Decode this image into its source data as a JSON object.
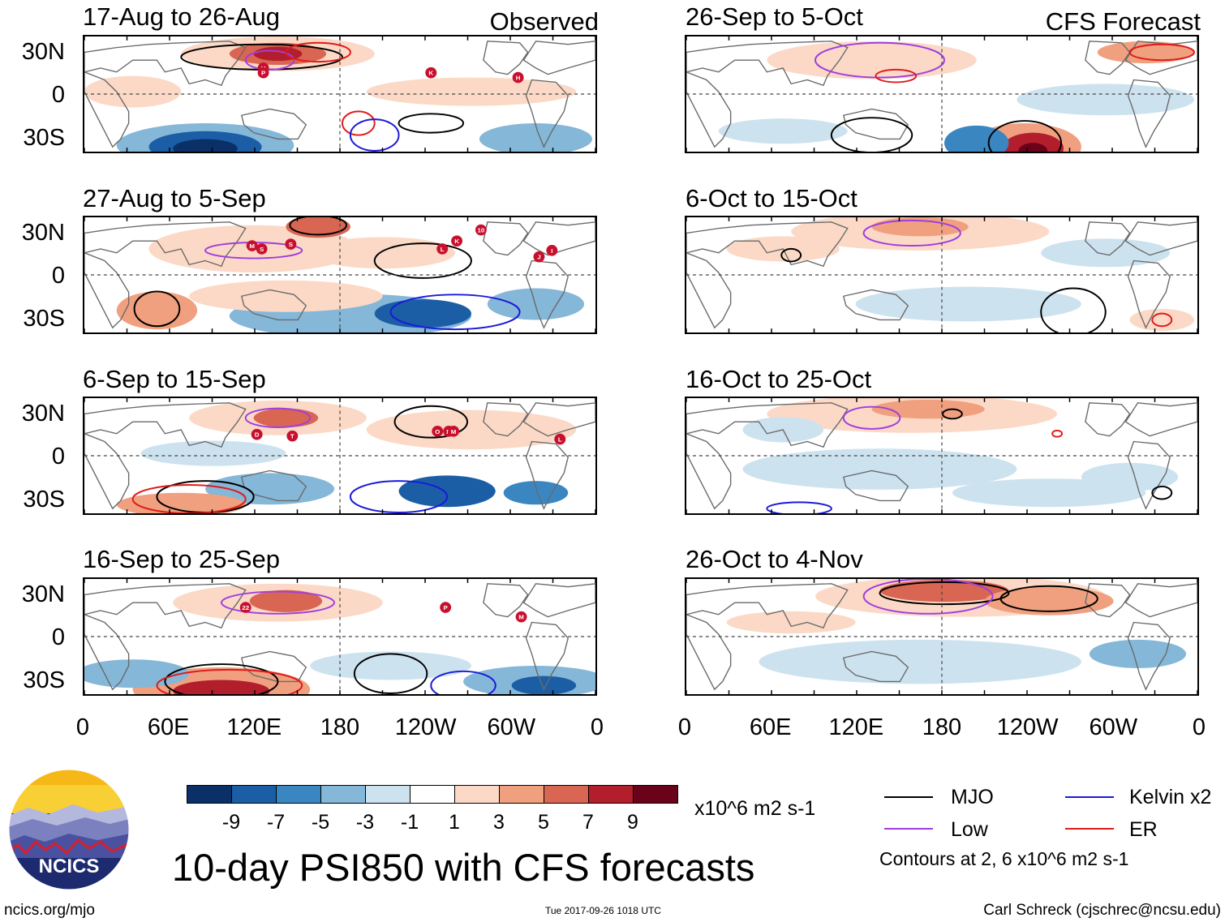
{
  "observed_label": "Observed",
  "forecast_label": "CFS Forecast",
  "panels_left": [
    {
      "title": "17-Aug to 26-Aug"
    },
    {
      "title": "27-Aug to 5-Sep"
    },
    {
      "title": "6-Sep to 15-Sep"
    },
    {
      "title": "16-Sep to 25-Sep"
    }
  ],
  "panels_right": [
    {
      "title": "26-Sep to 5-Oct"
    },
    {
      "title": "6-Oct to 15-Oct"
    },
    {
      "title": "16-Oct to 25-Oct"
    },
    {
      "title": "26-Oct to 4-Nov"
    }
  ],
  "lat_labels": [
    "30N",
    "0",
    "30S"
  ],
  "lon_labels": [
    "0",
    "60E",
    "120E",
    "180",
    "120W",
    "60W",
    "0"
  ],
  "colorbar": {
    "colors": [
      "#0a3067",
      "#1b5ea6",
      "#3a86c1",
      "#84b7d8",
      "#cde2ef",
      "#ffffff",
      "#fbd9c6",
      "#f0a07f",
      "#d86652",
      "#b21e2c",
      "#6a0219"
    ],
    "labels": [
      "-9",
      "-7",
      "-5",
      "-3",
      "-1",
      "1",
      "3",
      "5",
      "7",
      "9"
    ],
    "units": "x10^6 m2 s-1"
  },
  "main_title": "10-day PSI850 with CFS forecasts",
  "legend": {
    "mjo": {
      "label": "MJO",
      "color": "#000000"
    },
    "kelvin": {
      "label": "Kelvin x2",
      "color": "#1a1ad8"
    },
    "low": {
      "label": "Low",
      "color": "#a03ee0"
    },
    "er": {
      "label": "ER",
      "color": "#e01a1a"
    },
    "contours_note": "Contours at 2, 6 x10^6 m2 s-1"
  },
  "logo_text": "NCICS",
  "footer": {
    "left": "ncics.org/mjo",
    "center": "Tue 2017-09-26 1018 UTC",
    "right": "Carl Schreck (cjschrec@ncsu.edu)"
  },
  "storms": [
    {
      "panel": 0,
      "labels": [
        "H",
        "P",
        "K",
        "H"
      ]
    },
    {
      "panel": 1,
      "labels": [
        "M",
        "S",
        "S",
        "L",
        "K",
        "10",
        "J",
        "I"
      ]
    },
    {
      "panel": 2,
      "labels": [
        "D",
        "T",
        "O",
        "N",
        "M",
        "L"
      ]
    },
    {
      "panel": 3,
      "labels": [
        "22",
        "P",
        "M"
      ]
    }
  ]
}
